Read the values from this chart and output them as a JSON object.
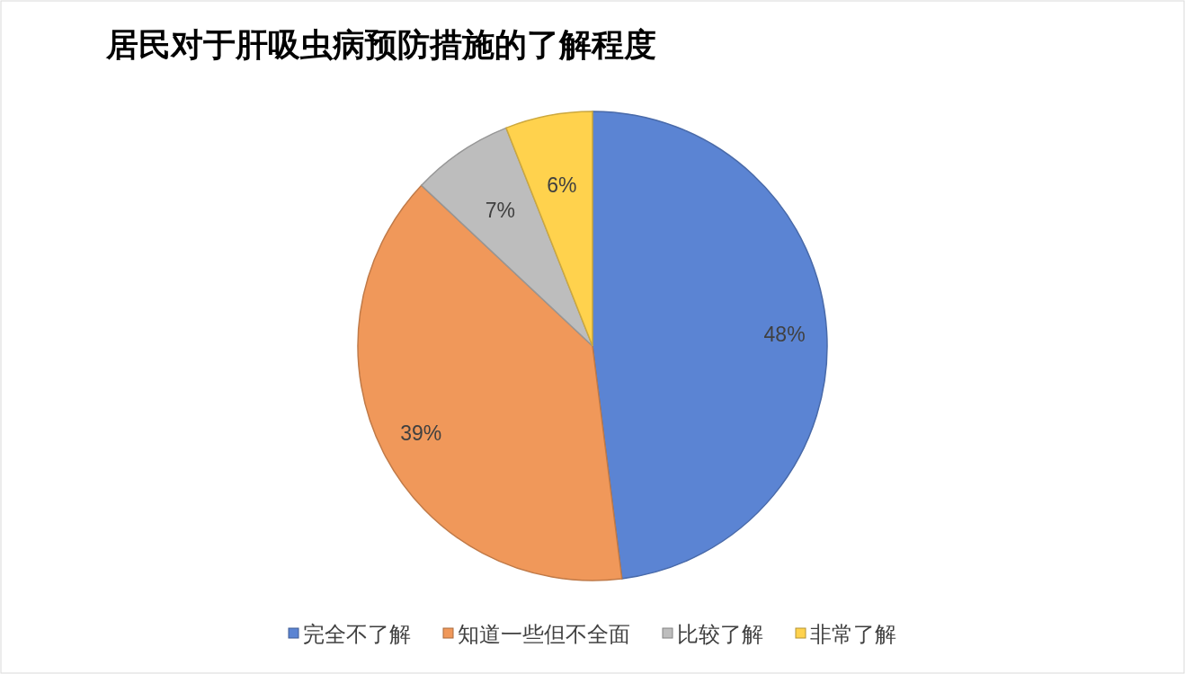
{
  "chart_data": {
    "type": "pie",
    "title": "居民对于肝吸虫病预防措施的了解程度",
    "categories": [
      "完全不了解",
      "知道一些但不全面",
      "比较了解",
      "非常了解"
    ],
    "values": [
      48,
      39,
      7,
      6
    ],
    "value_labels": [
      "48%",
      "39%",
      "7%",
      "6%"
    ],
    "colors": [
      "#5b84d3",
      "#f0985a",
      "#bdbdbd",
      "#ffd24d"
    ],
    "legend": "bottom"
  }
}
